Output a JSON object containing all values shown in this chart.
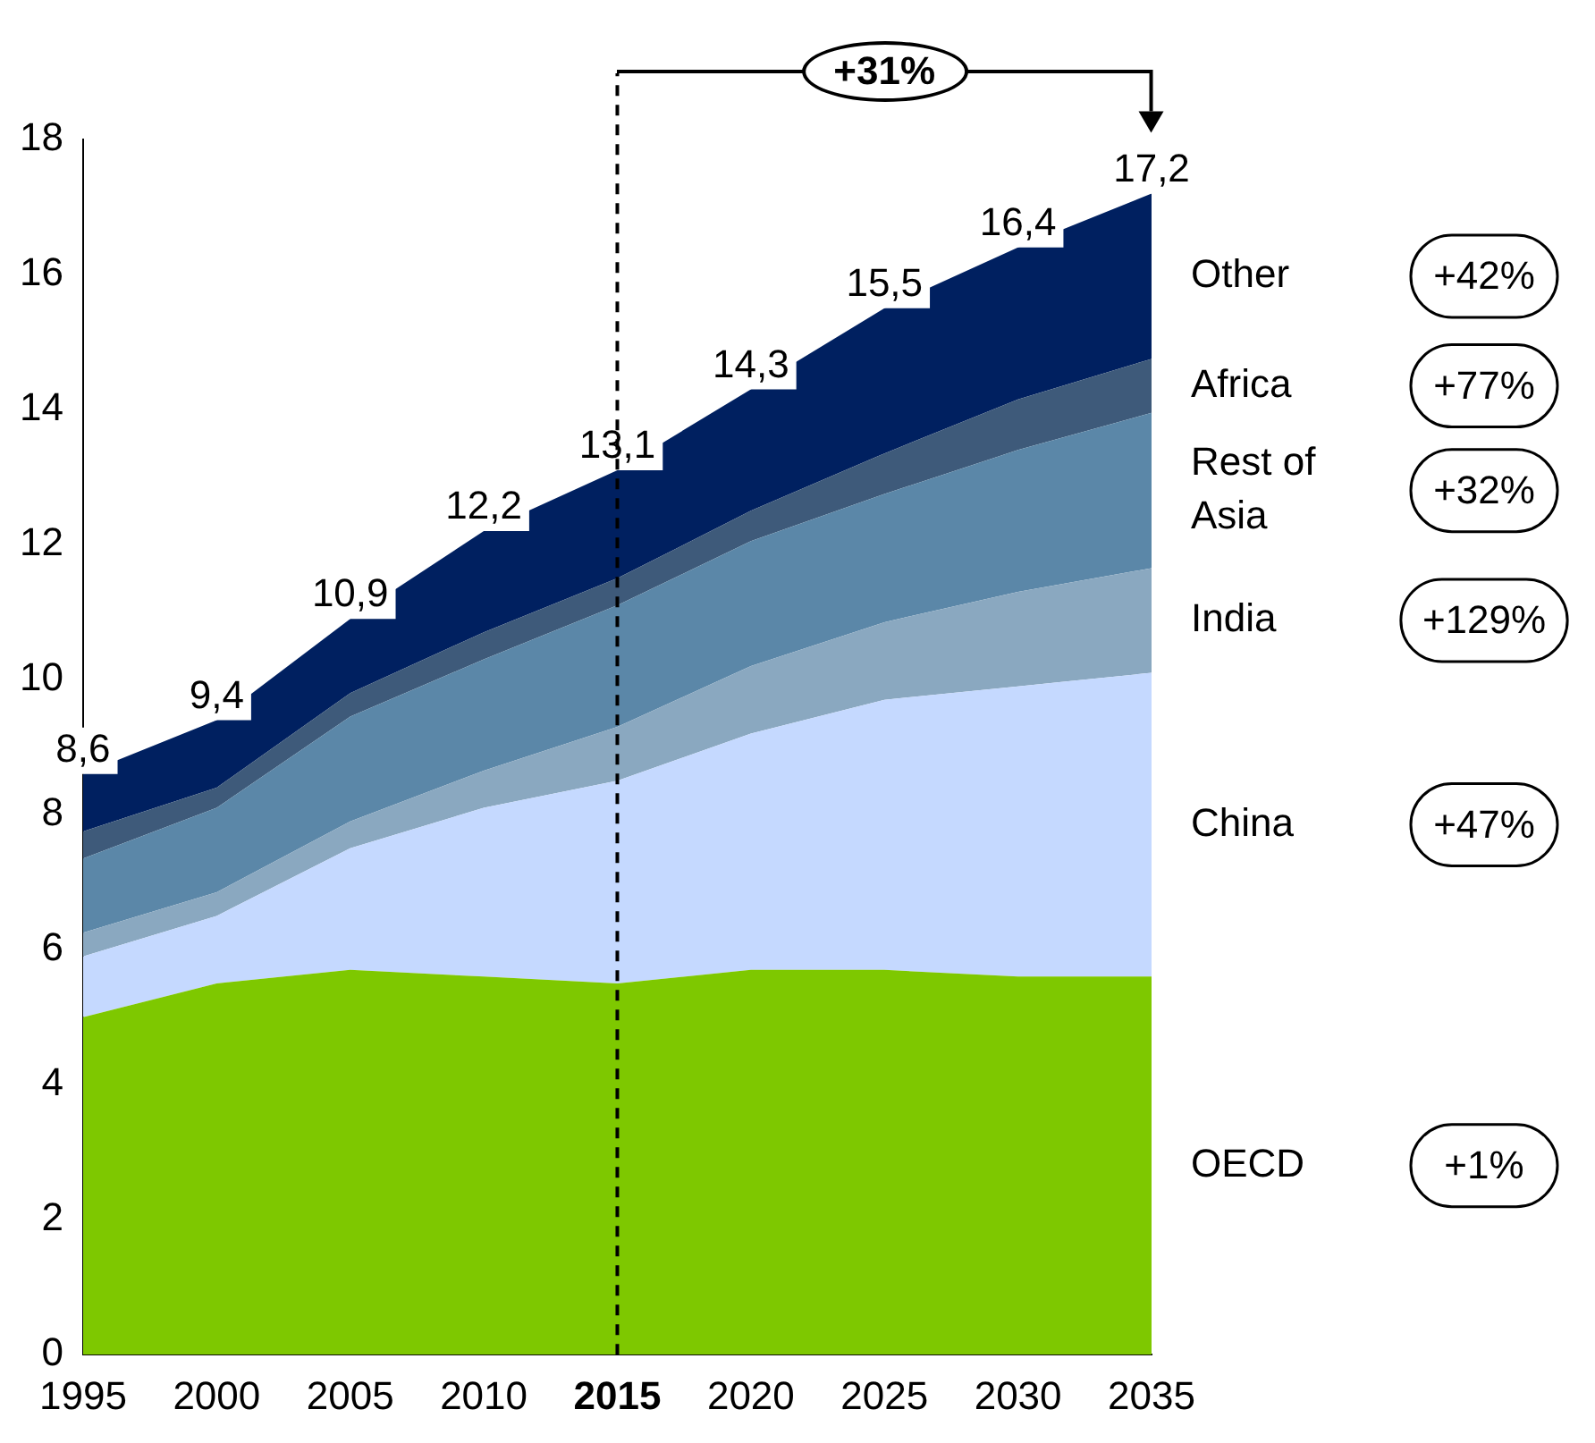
{
  "chart_data": {
    "type": "area",
    "stacked": true,
    "x": [
      1995,
      2000,
      2005,
      2010,
      2015,
      2020,
      2025,
      2030,
      2035
    ],
    "xlim": [
      1995,
      2035
    ],
    "xticks": [
      1995,
      2000,
      2005,
      2010,
      2015,
      2020,
      2025,
      2030,
      2035
    ],
    "ylim": [
      0,
      18
    ],
    "yticks": [
      0,
      2,
      4,
      6,
      8,
      10,
      12,
      14,
      16,
      18
    ],
    "grid": false,
    "legend": false,
    "series": [
      {
        "name": "OECD",
        "color": "#7ec800",
        "values": [
          5.0,
          5.5,
          5.7,
          5.6,
          5.5,
          5.7,
          5.7,
          5.6,
          5.6
        ]
      },
      {
        "name": "China",
        "color": "#c5d9ff",
        "values": [
          0.9,
          1.0,
          1.8,
          2.5,
          3.0,
          3.5,
          4.0,
          4.3,
          4.5
        ]
      },
      {
        "name": "India",
        "color": "#8aa8c0",
        "values": [
          0.35,
          0.35,
          0.4,
          0.55,
          0.8,
          1.0,
          1.15,
          1.4,
          1.55
        ]
      },
      {
        "name": "Rest of Asia",
        "color": "#5b87a8",
        "values": [
          1.1,
          1.25,
          1.55,
          1.65,
          1.8,
          1.85,
          1.9,
          2.1,
          2.3
        ]
      },
      {
        "name": "Africa",
        "color": "#3e5a7a",
        "values": [
          0.4,
          0.3,
          0.35,
          0.4,
          0.4,
          0.45,
          0.6,
          0.75,
          0.8
        ]
      },
      {
        "name": "Other",
        "color": "#002060",
        "values": [
          0.85,
          1.0,
          1.1,
          1.5,
          1.6,
          1.8,
          2.15,
          2.25,
          2.45
        ]
      }
    ],
    "totals": [
      "8,6",
      "9,4",
      "10,9",
      "12,2",
      "13,1",
      "14,3",
      "15,5",
      "16,4",
      "17,2"
    ],
    "ref_lines": [
      {
        "axis": "x",
        "value": 2015,
        "line_style": "dashed"
      }
    ],
    "annotations": [
      "+31%",
      "+1%",
      "+47%",
      "+129%",
      "+32%",
      "+77%",
      "+42%"
    ]
  }
}
